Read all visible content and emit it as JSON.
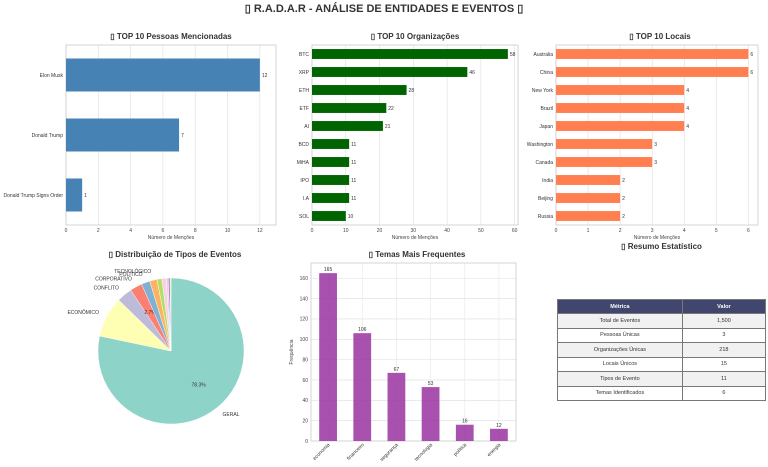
{
  "title": "▯ R.A.D.A.R - ANÁLISE DE ENTIDADES E EVENTOS ▯",
  "chart_data": [
    {
      "type": "bar",
      "orientation": "horizontal",
      "title": "▯ TOP 10 Pessoas Mencionadas",
      "xlabel": "Número de Menções",
      "color": "#4682b4",
      "categories": [
        "Elon Musk",
        "Donald Trump",
        "Donald Trump Signs Order"
      ],
      "values": [
        12,
        7,
        1
      ],
      "xlim": [
        0,
        13
      ],
      "xticks": [
        0,
        2,
        4,
        6,
        8,
        10,
        12
      ],
      "grid": "x"
    },
    {
      "type": "bar",
      "orientation": "horizontal",
      "title": "▯ TOP 10 Organizações",
      "xlabel": "Número de Menções",
      "color": "#006400",
      "categories": [
        "BTC",
        "XRP",
        "ETH",
        "ETF",
        "AI",
        "BCD",
        "MiHA",
        "IPO",
        "I.A",
        "SOL"
      ],
      "values": [
        58,
        46,
        28,
        22,
        21,
        11,
        11,
        11,
        11,
        10
      ],
      "xlim": [
        0,
        61
      ],
      "xticks": [
        0,
        10,
        20,
        30,
        40,
        50,
        60
      ],
      "grid": "x"
    },
    {
      "type": "bar",
      "orientation": "horizontal",
      "title": "▯ TOP 10 Locais",
      "xlabel": "Número de Menções",
      "color": "#ff7f50",
      "categories": [
        "Australia",
        "China",
        "New York",
        "Brazil",
        "Japan",
        "Washington",
        "Canada",
        "India",
        "Beijing",
        "Russia"
      ],
      "values": [
        6,
        6,
        4,
        4,
        4,
        3,
        3,
        2,
        2,
        2
      ],
      "xlim": [
        0,
        6.3
      ],
      "xticks": [
        0,
        1,
        2,
        3,
        4,
        5,
        6
      ],
      "grid": "x"
    },
    {
      "type": "pie",
      "title": "▯ Distribuição de Tipos de Eventos",
      "slices": [
        {
          "label": "GERAL",
          "value": 78.3,
          "pct": "78.3%",
          "color": "#8dd3c7"
        },
        {
          "label": "ECONÔMICO",
          "value": 9.0,
          "pct": "",
          "color": "#ffffb3"
        },
        {
          "label": "CONFLITO",
          "value": 3.4,
          "pct": "",
          "color": "#bebada"
        },
        {
          "label": "CORPORATIVO",
          "value": 2.7,
          "pct": "2.7%",
          "color": "#fb8072"
        },
        {
          "label": "POLÍTICO",
          "value": 1.9,
          "pct": "",
          "color": "#80b1d3"
        },
        {
          "label": "TECNOLÓGICO",
          "value": 1.6,
          "pct": "",
          "color": "#fdb462"
        },
        {
          "label": "",
          "value": 1.1,
          "pct": "",
          "color": "#b3de69"
        },
        {
          "label": "",
          "value": 0.9,
          "pct": "",
          "color": "#fccde5"
        },
        {
          "label": "",
          "value": 0.5,
          "pct": "",
          "color": "#d9d9d9"
        },
        {
          "label": "",
          "value": 0.4,
          "pct": "",
          "color": "#bc80bd"
        },
        {
          "label": "",
          "value": 0.2,
          "pct": "",
          "color": "#ccebc5"
        }
      ]
    },
    {
      "type": "bar",
      "orientation": "vertical",
      "title": "▯ Temas Mais Frequentes",
      "ylabel": "Frequência",
      "color": "#9932a0",
      "categories": [
        "economia",
        "financeiro",
        "segurança",
        "tecnologia",
        "política",
        "energia"
      ],
      "values": [
        165,
        106,
        67,
        53,
        16,
        12
      ],
      "ylim": [
        0,
        175
      ],
      "yticks": [
        0,
        20,
        40,
        60,
        80,
        100,
        120,
        140,
        160
      ],
      "grid": "both"
    }
  ],
  "stats": {
    "title": "▯ Resumo Estatístico",
    "headers": [
      "Métrica",
      "Valor"
    ],
    "rows": [
      [
        "Total de Eventos",
        "1,500"
      ],
      [
        "Pessoas Únicas",
        "3"
      ],
      [
        "Organizações Únicas",
        "218"
      ],
      [
        "Locais Únicos",
        "15"
      ],
      [
        "Tipos de Evento",
        "11"
      ],
      [
        "Temas Identificados",
        "6"
      ]
    ]
  }
}
